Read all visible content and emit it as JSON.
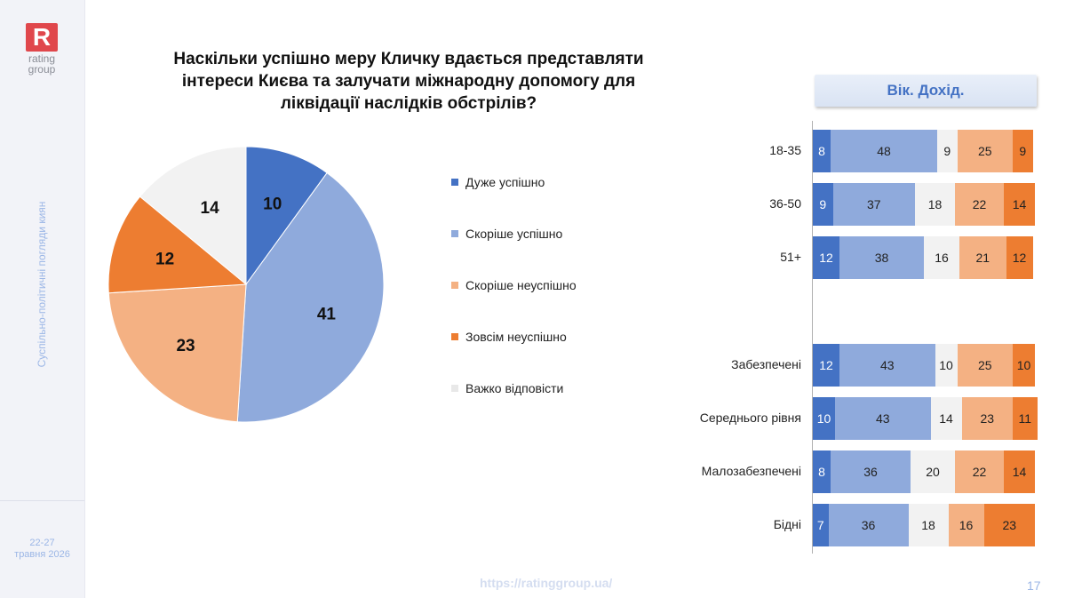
{
  "brand": {
    "logo_letter": "R",
    "logo_text": "rating group"
  },
  "sidebar": {
    "vertical_text": "Суспільно-політичні погляди киян",
    "date_line1": "22-27",
    "date_line2": "травня 2026"
  },
  "title": "Наскільки успішно меру Кличку вдається представляти інтереси Києва та залучати міжнародну допомогу для ліквідації наслідків обстрілів?",
  "tab_label": "Вік. Дохід.",
  "footer": {
    "url": "https://ratinggroup.ua/",
    "page_number": "17"
  },
  "colors": {
    "very_success": "#4472c4",
    "rather_success": "#8faadc",
    "rather_unsuccess": "#f4b183",
    "very_unsuccess": "#ed7d31",
    "hard_to_say": "#f2f2f2"
  },
  "chart_data": [
    {
      "type": "pie",
      "title": "",
      "slices": [
        {
          "label": "Дуже успішно",
          "value": 10,
          "color": "#4472c4"
        },
        {
          "label": "Скоріше успішно",
          "value": 41,
          "color": "#8faadc"
        },
        {
          "label": "Скоріше неуспішно",
          "value": 23,
          "color": "#f4b183"
        },
        {
          "label": "Зовсім неуспішно",
          "value": 12,
          "color": "#ed7d31"
        },
        {
          "label": "Важко відповісти",
          "value": 14,
          "color": "#f2f2f2"
        }
      ],
      "legend_position": "right"
    },
    {
      "type": "bar",
      "orientation": "horizontal",
      "stacked": true,
      "categories": [
        "18-35",
        "36-50",
        "51+",
        "Забезпечені",
        "Середнього рівня",
        "Малозабезпечені",
        "Бідні"
      ],
      "series": [
        {
          "name": "Дуже успішно",
          "values": [
            8,
            9,
            12,
            12,
            10,
            8,
            7
          ]
        },
        {
          "name": "Скоріше успішно",
          "values": [
            48,
            37,
            38,
            43,
            43,
            36,
            36
          ]
        },
        {
          "name": "Важко відповісти",
          "values": [
            9,
            18,
            16,
            10,
            14,
            20,
            18
          ]
        },
        {
          "name": "Скоріше неуспішно",
          "values": [
            25,
            22,
            21,
            25,
            23,
            22,
            16
          ]
        },
        {
          "name": "Зовсім неуспішно",
          "values": [
            9,
            14,
            12,
            10,
            11,
            14,
            23
          ]
        }
      ]
    }
  ]
}
